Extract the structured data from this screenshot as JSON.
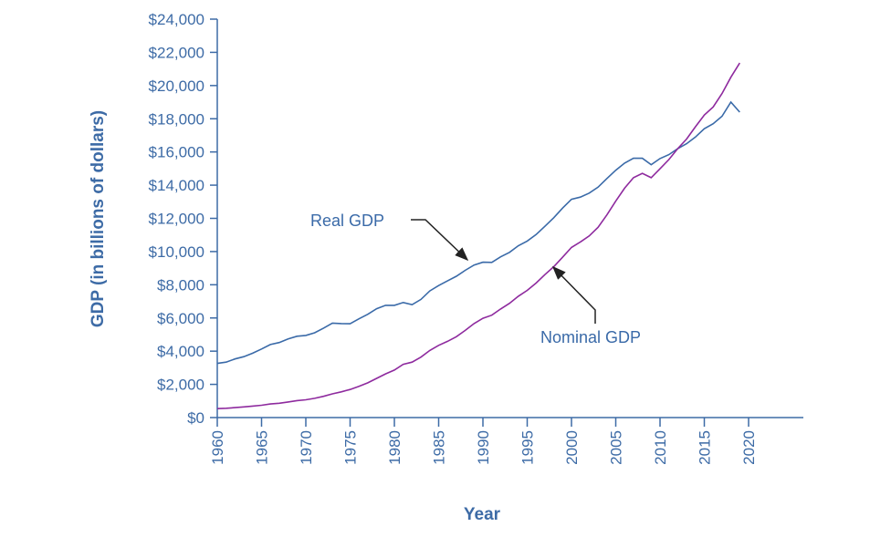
{
  "chart_data": {
    "type": "line",
    "title": "",
    "xlabel": "Year",
    "ylabel": "GDP (in billions of dollars)",
    "xlim": [
      1960,
      2026
    ],
    "ylim": [
      0,
      24000
    ],
    "grid": false,
    "x_ticks": [
      "1960",
      "1965",
      "1970",
      "1975",
      "1980",
      "1985",
      "1990",
      "1995",
      "2000",
      "2005",
      "2010",
      "2015",
      "2020"
    ],
    "y_ticks": [
      "$0",
      "$2,000",
      "$4,000",
      "$6,000",
      "$8,000",
      "$10,000",
      "$12,000",
      "$14,000",
      "$16,000",
      "$18,000",
      "$20,000",
      "$22,000",
      "$24,000"
    ],
    "colors": {
      "axis": "#3d6ba6",
      "real": "#3a6aa8",
      "nominal": "#8e2a9e",
      "arrow": "#222222"
    },
    "x": [
      1960,
      1961,
      1962,
      1963,
      1964,
      1965,
      1966,
      1967,
      1968,
      1969,
      1970,
      1971,
      1972,
      1973,
      1974,
      1975,
      1976,
      1977,
      1978,
      1979,
      1980,
      1981,
      1982,
      1983,
      1984,
      1985,
      1986,
      1987,
      1988,
      1989,
      1990,
      1991,
      1992,
      1993,
      1994,
      1995,
      1996,
      1997,
      1998,
      1999,
      2000,
      2001,
      2002,
      2003,
      2004,
      2005,
      2006,
      2007,
      2008,
      2009,
      2010,
      2011,
      2012,
      2013,
      2014,
      2015,
      2016,
      2017,
      2018,
      2019
    ],
    "series": [
      {
        "name": "Real GDP",
        "values": [
          3260,
          3340,
          3530,
          3670,
          3880,
          4130,
          4400,
          4520,
          4740,
          4900,
          4950,
          5110,
          5390,
          5690,
          5660,
          5650,
          5950,
          6220,
          6560,
          6760,
          6760,
          6930,
          6800,
          7120,
          7630,
          7950,
          8230,
          8510,
          8870,
          9190,
          9360,
          9350,
          9680,
          9950,
          10350,
          10630,
          11020,
          11520,
          12040,
          12620,
          13150,
          13280,
          13520,
          13880,
          14400,
          14900,
          15330,
          15620,
          15620,
          15230,
          15600,
          15840,
          16200,
          16500,
          16900,
          17400,
          17700,
          18150,
          19000,
          18400
        ]
      },
      {
        "name": "Nominal GDP",
        "values": [
          540,
          560,
          600,
          640,
          690,
          740,
          820,
          860,
          940,
          1020,
          1070,
          1160,
          1280,
          1430,
          1550,
          1690,
          1880,
          2090,
          2360,
          2630,
          2860,
          3210,
          3340,
          3640,
          4040,
          4350,
          4590,
          4870,
          5250,
          5660,
          5980,
          6170,
          6540,
          6880,
          7310,
          7660,
          8100,
          8610,
          9090,
          9660,
          10250,
          10580,
          10940,
          11460,
          12210,
          13040,
          13820,
          14450,
          14710,
          14450,
          14990,
          15540,
          16200,
          16780,
          17520,
          18220,
          18710,
          19520,
          20500,
          21360
        ]
      }
    ],
    "annotations": [
      "Real GDP",
      "Nominal GDP"
    ]
  }
}
